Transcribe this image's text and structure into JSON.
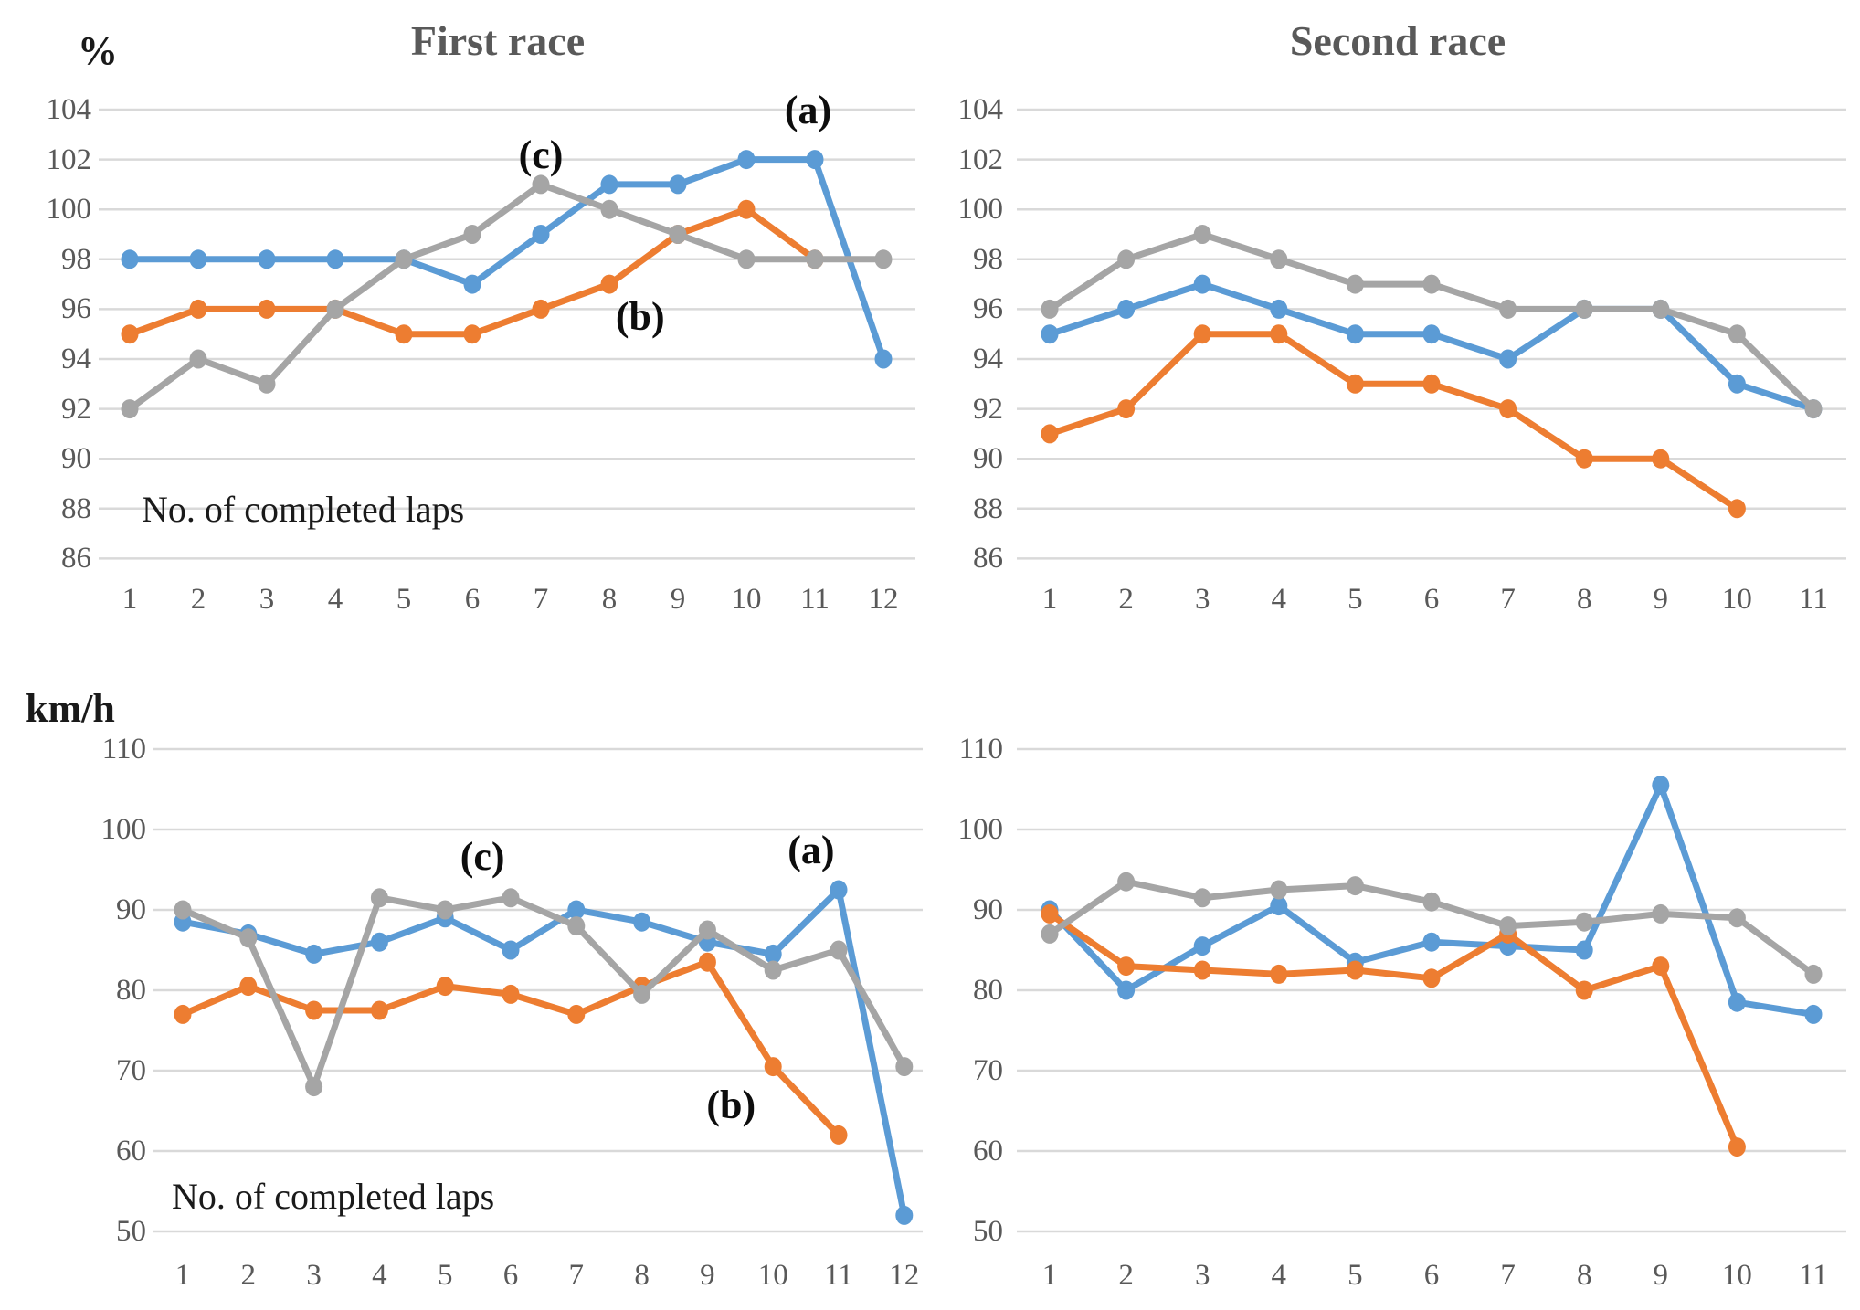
{
  "page": {
    "titles": {
      "first": "First race",
      "second": "Second race"
    },
    "laps_note": "No. of completed laps",
    "units": {
      "percent": "%",
      "speed": "km/h"
    },
    "colors": {
      "series_a": "#5B9BD5",
      "series_b": "#ED7D31",
      "series_c": "#A5A5A5",
      "grid": "#d9d9d9",
      "tick_text": "#595959",
      "title_text": "#595959"
    }
  },
  "chart_data": [
    {
      "type": "line",
      "title": "First race",
      "y_unit": "%",
      "note": "No. of completed laps",
      "xlabel": "No. of completed laps",
      "ylabel": "%",
      "grid": true,
      "legend": "none (inline annotations)",
      "categories": [
        1,
        2,
        3,
        4,
        5,
        6,
        7,
        8,
        9,
        10,
        11,
        12
      ],
      "ylim": [
        85,
        105
      ],
      "yticks": [
        104,
        102,
        100,
        98,
        96,
        94,
        92,
        90,
        88,
        86
      ],
      "series": [
        {
          "name": "(a)",
          "color": "#5B9BD5",
          "values": [
            98,
            98,
            98,
            98,
            98,
            97,
            99,
            101,
            101,
            102,
            102,
            94
          ]
        },
        {
          "name": "(b)",
          "color": "#ED7D31",
          "values": [
            95,
            96,
            96,
            96,
            95,
            95,
            96,
            97,
            99,
            100,
            98
          ]
        },
        {
          "name": "(c)",
          "color": "#A5A5A5",
          "values": [
            92,
            94,
            93,
            96,
            98,
            99,
            101,
            100,
            99,
            98,
            98,
            98
          ]
        }
      ],
      "annotations": [
        {
          "label": "(c)",
          "x": 7.0,
          "y": 102.1
        },
        {
          "label": "(a)",
          "x": 10.9,
          "y": 103.9
        },
        {
          "label": "(b)",
          "x": 8.45,
          "y": 95.6
        }
      ]
    },
    {
      "type": "line",
      "title": "Second race",
      "y_unit": "%",
      "note": "",
      "xlabel": "No. of completed laps",
      "ylabel": "%",
      "grid": true,
      "legend": "none",
      "categories": [
        1,
        2,
        3,
        4,
        5,
        6,
        7,
        8,
        9,
        10,
        11
      ],
      "ylim": [
        85,
        105
      ],
      "yticks": [
        104,
        102,
        100,
        98,
        96,
        94,
        92,
        90,
        88,
        86
      ],
      "series": [
        {
          "name": "(a)",
          "color": "#5B9BD5",
          "values": [
            95,
            96,
            97,
            96,
            95,
            95,
            94,
            96,
            96,
            93,
            92
          ]
        },
        {
          "name": "(b)",
          "color": "#ED7D31",
          "values": [
            91,
            92,
            95,
            95,
            93,
            93,
            92,
            90,
            90,
            88
          ]
        },
        {
          "name": "(c)",
          "color": "#A5A5A5",
          "values": [
            96,
            98,
            99,
            98,
            97,
            97,
            96,
            96,
            96,
            95,
            92
          ]
        }
      ],
      "annotations": []
    },
    {
      "type": "line",
      "title": "First race",
      "y_unit": "km/h",
      "note": "No. of completed laps",
      "xlabel": "No. of completed laps",
      "ylabel": "km/h",
      "grid": true,
      "legend": "none (inline annotations)",
      "categories": [
        1,
        2,
        3,
        4,
        5,
        6,
        7,
        8,
        9,
        10,
        11,
        12
      ],
      "ylim": [
        45,
        112
      ],
      "yticks": [
        110,
        100,
        90,
        80,
        70,
        60,
        50
      ],
      "series": [
        {
          "name": "(a)",
          "color": "#5B9BD5",
          "values": [
            88.5,
            87,
            84.5,
            86,
            89,
            85,
            90,
            88.5,
            86,
            84.5,
            92.5,
            52
          ]
        },
        {
          "name": "(b)",
          "color": "#ED7D31",
          "values": [
            77,
            80.5,
            77.5,
            77.5,
            80.5,
            79.5,
            77,
            80.5,
            83.5,
            70.5,
            62
          ]
        },
        {
          "name": "(c)",
          "color": "#A5A5A5",
          "values": [
            90,
            86.5,
            68,
            91.5,
            90,
            91.5,
            88,
            79.5,
            87.5,
            82.5,
            85,
            70.5
          ]
        }
      ],
      "annotations": [
        {
          "label": "(c)",
          "x": 5.57,
          "y": 96.4
        },
        {
          "label": "(a)",
          "x": 10.58,
          "y": 97.2
        },
        {
          "label": "(b)",
          "x": 9.36,
          "y": 65.5
        }
      ]
    },
    {
      "type": "line",
      "title": "Second race",
      "y_unit": "km/h",
      "note": "",
      "xlabel": "No. of completed laps",
      "ylabel": "km/h",
      "grid": true,
      "legend": "none",
      "categories": [
        1,
        2,
        3,
        4,
        5,
        6,
        7,
        8,
        9,
        10,
        11
      ],
      "ylim": [
        45,
        112
      ],
      "yticks": [
        110,
        100,
        90,
        80,
        70,
        60,
        50
      ],
      "series": [
        {
          "name": "(a)",
          "color": "#5B9BD5",
          "values": [
            90,
            80,
            85.5,
            90.5,
            83.5,
            86,
            85.5,
            85,
            105.5,
            78.5,
            77
          ]
        },
        {
          "name": "(b)",
          "color": "#ED7D31",
          "values": [
            89.5,
            83,
            82.5,
            82,
            82.5,
            81.5,
            87,
            80,
            83,
            60.5
          ]
        },
        {
          "name": "(c)",
          "color": "#A5A5A5",
          "values": [
            87,
            93.5,
            91.5,
            92.5,
            93,
            91,
            88,
            88.5,
            89.5,
            89,
            82
          ]
        }
      ],
      "annotations": []
    }
  ]
}
